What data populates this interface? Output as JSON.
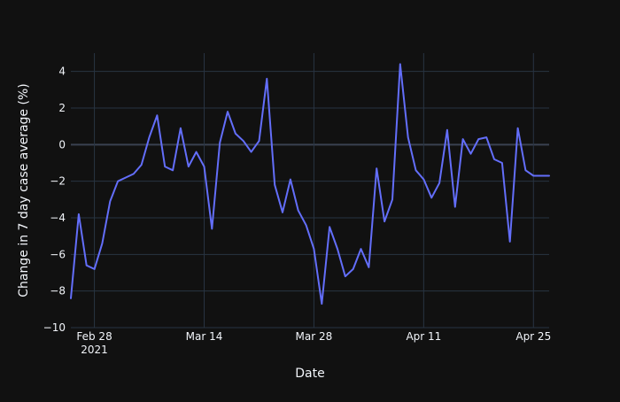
{
  "chart_data": {
    "type": "line",
    "xlabel": "Date",
    "ylabel": "Change in 7 day case average (%)",
    "x_start": "2021-02-25",
    "x_end": "2021-04-27",
    "x_ticks": [
      {
        "date": "2021-02-28",
        "label": "Feb 28",
        "sublabel": "2021"
      },
      {
        "date": "2021-03-14",
        "label": "Mar 14",
        "sublabel": ""
      },
      {
        "date": "2021-03-28",
        "label": "Mar 28",
        "sublabel": ""
      },
      {
        "date": "2021-04-11",
        "label": "Apr 11",
        "sublabel": ""
      },
      {
        "date": "2021-04-25",
        "label": "Apr 25",
        "sublabel": ""
      }
    ],
    "y_ticks": [
      -10,
      -8,
      -6,
      -4,
      -2,
      0,
      2,
      4
    ],
    "ylim": [
      -10,
      5
    ],
    "grid": true,
    "line_color": "#636efa",
    "x": [
      "2021-02-25",
      "2021-02-26",
      "2021-02-27",
      "2021-02-28",
      "2021-03-01",
      "2021-03-02",
      "2021-03-03",
      "2021-03-04",
      "2021-03-05",
      "2021-03-06",
      "2021-03-07",
      "2021-03-08",
      "2021-03-09",
      "2021-03-10",
      "2021-03-11",
      "2021-03-12",
      "2021-03-13",
      "2021-03-14",
      "2021-03-15",
      "2021-03-16",
      "2021-03-17",
      "2021-03-18",
      "2021-03-19",
      "2021-03-20",
      "2021-03-21",
      "2021-03-22",
      "2021-03-23",
      "2021-03-24",
      "2021-03-25",
      "2021-03-26",
      "2021-03-27",
      "2021-03-28",
      "2021-03-29",
      "2021-03-30",
      "2021-03-31",
      "2021-04-01",
      "2021-04-02",
      "2021-04-03",
      "2021-04-04",
      "2021-04-05",
      "2021-04-06",
      "2021-04-07",
      "2021-04-08",
      "2021-04-09",
      "2021-04-10",
      "2021-04-11",
      "2021-04-12",
      "2021-04-13",
      "2021-04-14",
      "2021-04-15",
      "2021-04-16",
      "2021-04-17",
      "2021-04-18",
      "2021-04-19",
      "2021-04-20",
      "2021-04-21",
      "2021-04-22",
      "2021-04-23",
      "2021-04-24",
      "2021-04-25",
      "2021-04-26",
      "2021-04-27"
    ],
    "values": [
      -8.4,
      -3.8,
      -6.6,
      -6.8,
      -5.4,
      -3.1,
      -2.0,
      -1.8,
      -1.6,
      -1.1,
      0.4,
      1.6,
      -1.2,
      -1.4,
      0.9,
      -1.2,
      -0.4,
      -1.2,
      -4.6,
      0.1,
      1.8,
      0.6,
      0.2,
      -0.4,
      0.2,
      3.6,
      -2.2,
      -3.7,
      -1.9,
      -3.6,
      -4.4,
      -5.7,
      -8.7,
      -4.5,
      -5.7,
      -7.2,
      -6.8,
      -5.7,
      -6.7,
      -1.3,
      -4.2,
      -3.0,
      4.4,
      0.4,
      -1.4,
      -1.9,
      -2.9,
      -2.1,
      0.8,
      -3.4,
      0.3,
      -0.5,
      0.3,
      0.4,
      -0.8,
      -1.0,
      -5.3,
      0.9,
      -1.4,
      -1.7,
      -1.7,
      -1.7
    ]
  }
}
